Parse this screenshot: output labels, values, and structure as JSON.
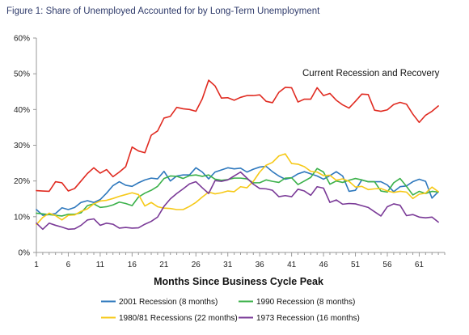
{
  "chart_data": {
    "type": "line",
    "title": "Figure 1: Share of Unemployed Accounted for by Long-Term Unemployment",
    "xlabel": "Months Since Business Cycle Peak",
    "ylabel": "",
    "xlim": [
      1,
      65
    ],
    "ylim": [
      0,
      60
    ],
    "x_ticks": [
      1,
      6,
      11,
      16,
      21,
      26,
      31,
      36,
      41,
      46,
      51,
      56,
      61
    ],
    "x_tick_labels": [
      "1",
      "6",
      "11",
      "16",
      "21",
      "26",
      "31",
      "36",
      "41",
      "46",
      "51",
      "56",
      "61"
    ],
    "y_ticks": [
      0,
      10,
      20,
      30,
      40,
      50,
      60
    ],
    "y_tick_labels": [
      "0%",
      "10%",
      "20%",
      "30%",
      "40%",
      "50%",
      "60%"
    ],
    "grid": false,
    "legend_position": "bottom",
    "annotation": "Current Recession and Recovery",
    "series": [
      {
        "name": "Current Recession and Recovery",
        "color": "#e02a20",
        "in_legend": false,
        "values": [
          17.3,
          17.2,
          17.1,
          19.8,
          19.5,
          17.2,
          17.9,
          20.0,
          22.1,
          23.7,
          22.2,
          23.2,
          21.2,
          22.5,
          24.0,
          29.5,
          28.4,
          27.9,
          32.8,
          34.0,
          37.6,
          38.1,
          40.6,
          40.2,
          40.0,
          39.5,
          43.0,
          48.2,
          46.6,
          43.2,
          43.3,
          42.6,
          43.4,
          43.9,
          43.9,
          44.1,
          42.3,
          41.9,
          44.8,
          46.2,
          46.1,
          42.1,
          42.9,
          42.9,
          46.1,
          43.9,
          44.5,
          42.6,
          41.3,
          40.4,
          42.3,
          44.3,
          44.2,
          39.8,
          39.5,
          39.9,
          41.4,
          42.0,
          41.5,
          38.7,
          36.4,
          38.4,
          39.5,
          41.0
        ]
      },
      {
        "name": "2001 Recession (8 months)",
        "color": "#2e78bd",
        "in_legend": true,
        "values": [
          12.0,
          10.4,
          10.6,
          10.9,
          12.5,
          12.0,
          12.6,
          14.0,
          14.5,
          14.0,
          14.8,
          16.6,
          18.7,
          19.8,
          18.8,
          18.5,
          19.5,
          20.3,
          20.8,
          20.6,
          22.7,
          20.0,
          21.4,
          21.7,
          21.7,
          23.7,
          22.5,
          20.6,
          22.5,
          23.1,
          23.7,
          23.4,
          23.6,
          22.5,
          23.3,
          23.9,
          24.1,
          22.6,
          21.4,
          20.5,
          20.9,
          22.0,
          22.6,
          22.0,
          21.4,
          20.5,
          21.5,
          22.6,
          21.4,
          17.1,
          17.4,
          20.3,
          19.8,
          19.8,
          19.8,
          18.9,
          17.0,
          18.4,
          18.6,
          19.8,
          20.5,
          19.9,
          15.2,
          17.0
        ]
      },
      {
        "name": "1990 Recession (8 months)",
        "color": "#3bb14a",
        "in_legend": true,
        "values": [
          11.0,
          10.8,
          10.6,
          10.4,
          10.2,
          10.7,
          10.7,
          11.1,
          13.1,
          13.6,
          12.6,
          12.8,
          13.3,
          14.1,
          13.7,
          13.1,
          15.5,
          16.6,
          17.4,
          18.5,
          20.7,
          21.4,
          21.3,
          20.7,
          21.5,
          21.7,
          21.3,
          21.7,
          20.5,
          20.2,
          20.4,
          20.8,
          20.8,
          20.6,
          19.5,
          19.5,
          20.3,
          19.9,
          19.6,
          20.8,
          20.9,
          19.0,
          20.0,
          21.0,
          23.5,
          22.5,
          19.1,
          20.0,
          19.6,
          20.2,
          20.7,
          20.3,
          19.8,
          19.8,
          17.2,
          16.9,
          19.5,
          20.7,
          18.5,
          16.1,
          17.1,
          16.5,
          17.1,
          16.9
        ]
      },
      {
        "name": "1980/81 Recessions (22 months)",
        "color": "#f6c918",
        "in_legend": true,
        "values": [
          7.8,
          9.8,
          11.0,
          10.3,
          9.1,
          10.4,
          10.5,
          11.5,
          12.2,
          13.6,
          14.4,
          14.6,
          15.1,
          15.7,
          16.2,
          16.7,
          16.2,
          13.0,
          14.0,
          12.8,
          12.4,
          12.3,
          12.0,
          12.0,
          12.9,
          14.0,
          15.5,
          16.9,
          16.4,
          16.7,
          17.2,
          17.0,
          18.4,
          18.1,
          19.9,
          22.5,
          24.4,
          25.2,
          27.0,
          27.6,
          24.9,
          24.7,
          24.0,
          22.7,
          22.5,
          21.5,
          21.6,
          20.2,
          20.6,
          19.9,
          18.3,
          18.5,
          17.6,
          17.8,
          17.9,
          17.2,
          16.8,
          17.1,
          16.9,
          15.1,
          16.3,
          16.6,
          18.3,
          17.0
        ]
      },
      {
        "name": "1973 Recession (16 months)",
        "color": "#7a3a97",
        "in_legend": true,
        "values": [
          8.2,
          6.5,
          8.2,
          7.6,
          7.1,
          6.5,
          6.6,
          7.6,
          9.1,
          9.4,
          7.6,
          8.2,
          7.9,
          6.8,
          7.0,
          6.8,
          6.9,
          7.9,
          8.7,
          9.9,
          12.9,
          15.0,
          16.5,
          17.8,
          19.2,
          19.8,
          18.1,
          16.5,
          20.1,
          19.9,
          20.3,
          21.4,
          22.5,
          20.8,
          19.1,
          17.9,
          17.8,
          17.4,
          15.6,
          15.9,
          15.6,
          17.7,
          17.2,
          16.0,
          18.4,
          18.0,
          14.0,
          14.7,
          13.5,
          13.7,
          13.6,
          13.1,
          12.6,
          11.4,
          10.2,
          12.8,
          13.6,
          13.2,
          10.3,
          10.6,
          9.9,
          9.7,
          9.9,
          8.5
        ]
      }
    ]
  }
}
